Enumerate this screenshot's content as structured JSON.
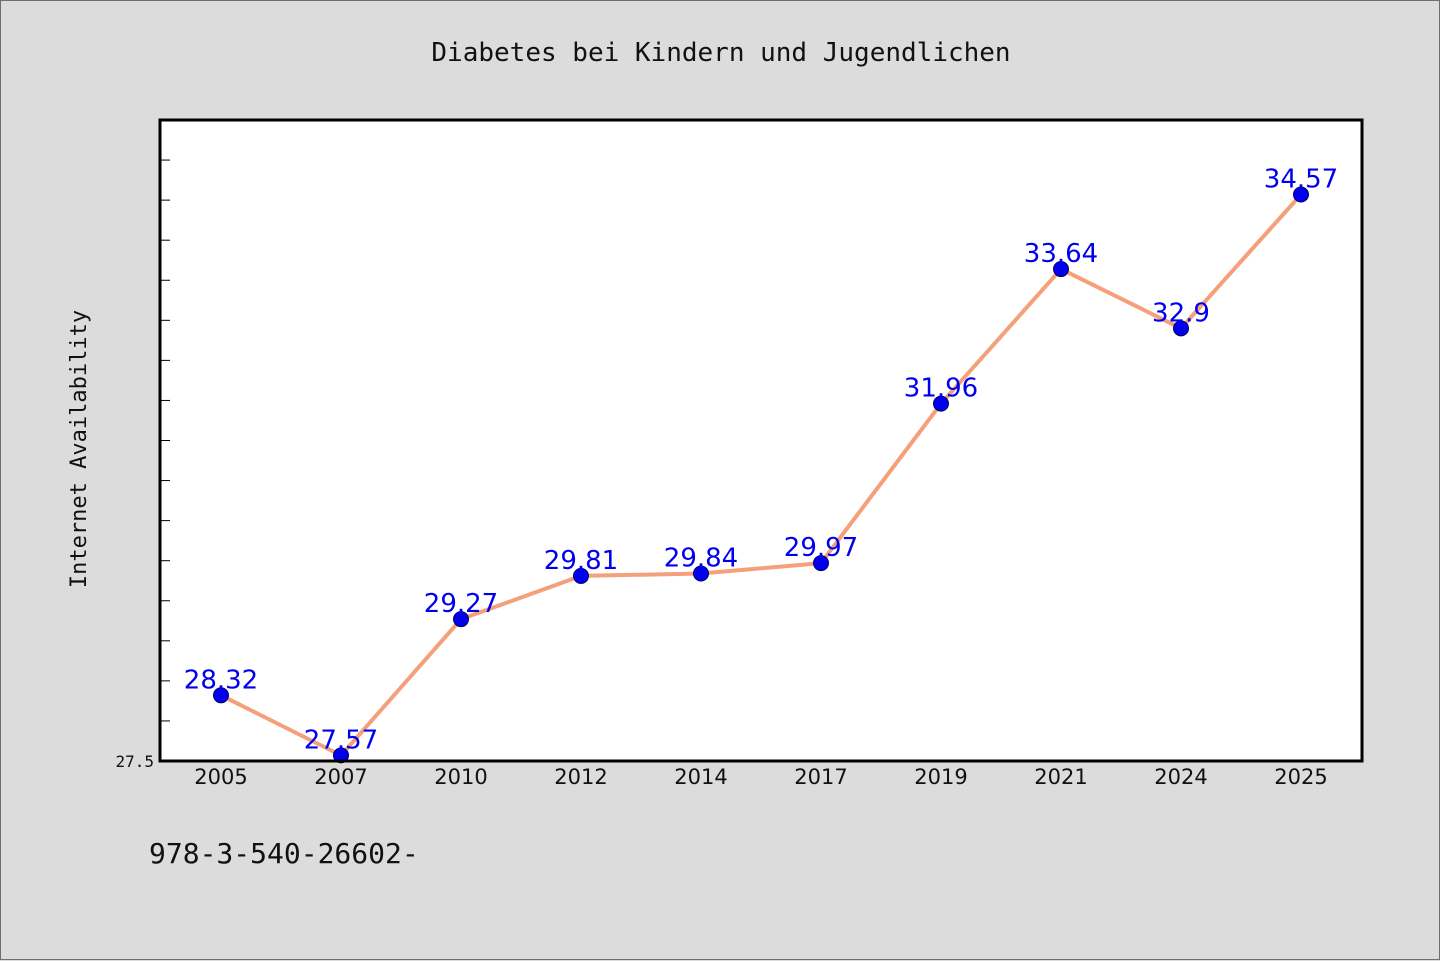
{
  "chart_data": {
    "type": "line",
    "title": "Diabetes bei Kindern und Jugendlichen",
    "xlabel": "",
    "ylabel": "Internet Availability",
    "categories": [
      "2005",
      "2007",
      "2010",
      "2012",
      "2014",
      "2017",
      "2019",
      "2021",
      "2024",
      "2025"
    ],
    "series": [
      {
        "values": [
          28.32,
          27.57,
          29.27,
          29.81,
          29.84,
          29.97,
          31.96,
          33.64,
          32.9,
          34.57
        ],
        "data_labels": [
          "28.32",
          "27.57",
          "29.27",
          "29.81",
          "29.84",
          "29.97",
          "31.96",
          "33.64",
          "32.9",
          "34.57"
        ]
      }
    ],
    "ylim": [
      27.5,
      35.5
    ],
    "y_tick_labels": [
      "27.5"
    ],
    "grid": false,
    "legend": "none",
    "colors": {
      "line": "#f4a07a",
      "marker": "#0000ee",
      "data_label": "#0000ee",
      "background": "#dcdcdc",
      "plot_background": "#ffffff"
    }
  },
  "footnote": "978-3-540-26602-"
}
